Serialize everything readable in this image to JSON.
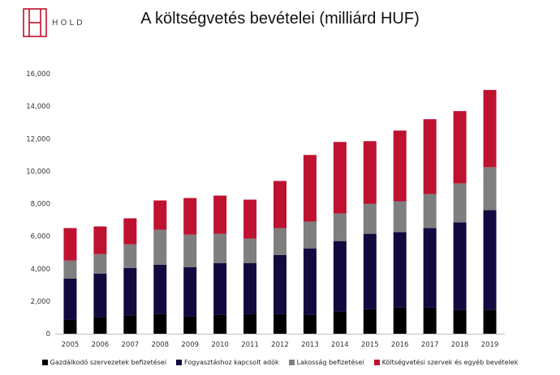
{
  "brand": {
    "name": "HOLD",
    "accent": "#c0102a"
  },
  "chart_data": {
    "type": "bar",
    "stacked": true,
    "title": "A költségvetés bevételei (milliárd HUF)",
    "xlabel": "",
    "ylabel": "",
    "categories": [
      "2005",
      "2006",
      "2007",
      "2008",
      "2009",
      "2010",
      "2011",
      "2012",
      "2013",
      "2014",
      "2015",
      "2016",
      "2017",
      "2018",
      "2019"
    ],
    "ylim": [
      0,
      16000
    ],
    "yticks": [
      0,
      2000,
      4000,
      6000,
      8000,
      10000,
      12000,
      14000,
      16000
    ],
    "ytick_labels": [
      "0",
      "2,000",
      "4,000",
      "6,000",
      "8,000",
      "10,000",
      "12,000",
      "14,000",
      "16,000"
    ],
    "grid": false,
    "legend_position": "bottom",
    "series": [
      {
        "name": "Gazdálkodó szervezetek befizetései",
        "color": "#000000",
        "values": [
          850,
          1000,
          1100,
          1200,
          1050,
          1150,
          1200,
          1200,
          1150,
          1350,
          1500,
          1600,
          1600,
          1450,
          1450
        ]
      },
      {
        "name": "Fogyasztáshoz kapcsolt adók",
        "color": "#14093f",
        "values": [
          2550,
          2700,
          2950,
          3050,
          3050,
          3200,
          3150,
          3650,
          4100,
          4350,
          4650,
          4650,
          4900,
          5400,
          6150
        ]
      },
      {
        "name": "Lakosság befizetései",
        "color": "#7f7f7f",
        "values": [
          1100,
          1200,
          1450,
          2150,
          2000,
          1800,
          1500,
          1650,
          1650,
          1700,
          1850,
          1900,
          2100,
          2400,
          2650
        ]
      },
      {
        "name": "Költségvetési szervek és egyéb bevételek",
        "color": "#be1230",
        "values": [
          2000,
          1700,
          1600,
          1800,
          2250,
          2350,
          2400,
          2900,
          4100,
          4400,
          3850,
          4350,
          4600,
          4450,
          4750
        ]
      }
    ]
  }
}
